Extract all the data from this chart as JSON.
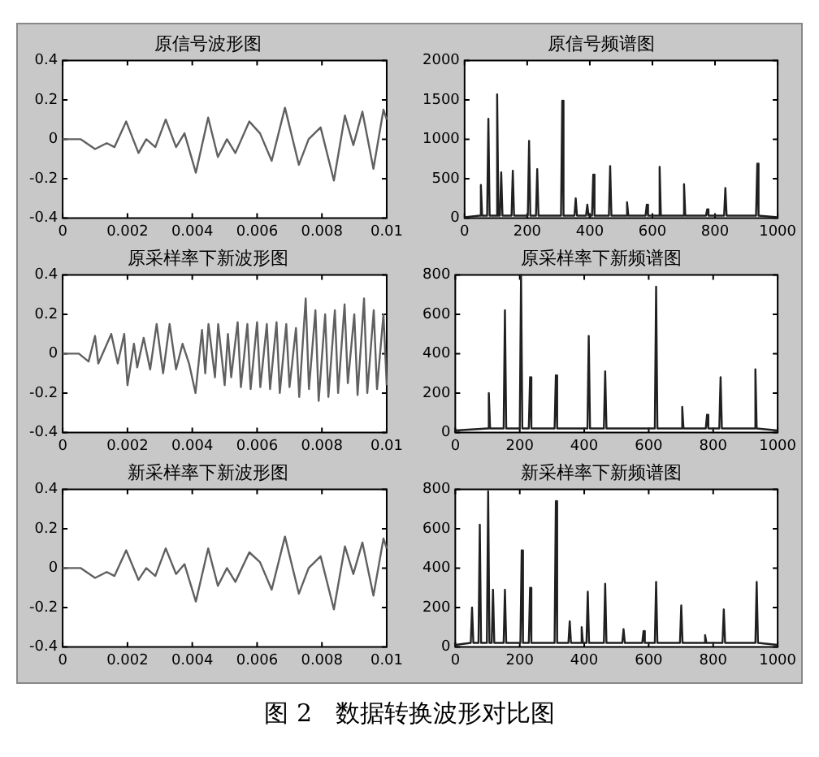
{
  "chart_data": [
    {
      "type": "line",
      "title": "原信号波形图",
      "xlim": [
        0,
        0.01
      ],
      "xticks": [
        0,
        0.002,
        0.004,
        0.006,
        0.008,
        0.01
      ],
      "ylim": [
        -0.4,
        0.4
      ],
      "yticks": [
        -0.4,
        -0.2,
        0,
        0.2,
        0.4
      ],
      "grid": false,
      "legend": false,
      "marker": "none",
      "line_style": "solid",
      "x": [
        0,
        0.00056,
        0.001,
        0.00136,
        0.0016,
        0.00196,
        0.00234,
        0.00258,
        0.00286,
        0.00318,
        0.0035,
        0.00376,
        0.00411,
        0.00449,
        0.00479,
        0.00507,
        0.00533,
        0.00576,
        0.00609,
        0.00645,
        0.00686,
        0.00729,
        0.00759,
        0.00796,
        0.00837,
        0.00871,
        0.00897,
        0.00925,
        0.00959,
        0.0099,
        0.01
      ],
      "series": [
        {
          "color": "#606060",
          "values": [
            0,
            0,
            -0.05,
            -0.02,
            -0.04,
            0.09,
            -0.07,
            0,
            -0.04,
            0.1,
            -0.04,
            0.03,
            -0.17,
            0.11,
            -0.09,
            0,
            -0.07,
            0.09,
            0.03,
            -0.11,
            0.16,
            -0.13,
            0,
            0.06,
            -0.21,
            0.12,
            -0.03,
            0.14,
            -0.15,
            0.15,
            0.1
          ]
        }
      ]
    },
    {
      "type": "line",
      "title": "原信号频谱图",
      "xlim": [
        0,
        1000
      ],
      "xticks": [
        0,
        200,
        400,
        600,
        800,
        1000
      ],
      "ylim": [
        0,
        2000
      ],
      "yticks": [
        0,
        500,
        1000,
        1500,
        2000
      ],
      "grid": false,
      "legend": false,
      "marker": "none",
      "line_style": "solid",
      "x": [
        0,
        48,
        52,
        56,
        72,
        76,
        80,
        100,
        104,
        108,
        113,
        117,
        121,
        150,
        154,
        158,
        202,
        206,
        210,
        228,
        232,
        236,
        308,
        312,
        316,
        351,
        355,
        359,
        388,
        392,
        396,
        407,
        411,
        415,
        461,
        465,
        469,
        515,
        519,
        523,
        578,
        582,
        586,
        619,
        623,
        627,
        697,
        701,
        705,
        771,
        775,
        779,
        829,
        833,
        837,
        931,
        935,
        939,
        1000
      ],
      "series": [
        {
          "color": "#202020",
          "values": [
            10,
            30,
            420,
            30,
            30,
            1260,
            30,
            30,
            1570,
            30,
            30,
            580,
            30,
            30,
            600,
            30,
            30,
            980,
            30,
            30,
            620,
            30,
            30,
            1490,
            30,
            30,
            250,
            30,
            30,
            170,
            30,
            30,
            550,
            30,
            30,
            660,
            30,
            30,
            200,
            30,
            30,
            170,
            30,
            30,
            650,
            30,
            30,
            430,
            30,
            30,
            110,
            30,
            30,
            380,
            30,
            30,
            690,
            30,
            10
          ]
        }
      ]
    },
    {
      "type": "line",
      "title": "原采样率下新波形图",
      "xlim": [
        0,
        0.01
      ],
      "xticks": [
        0,
        0.002,
        0.004,
        0.006,
        0.008,
        0.01
      ],
      "ylim": [
        -0.4,
        0.4
      ],
      "yticks": [
        -0.4,
        -0.2,
        0,
        0.2,
        0.4
      ],
      "grid": false,
      "legend": false,
      "marker": "none",
      "line_style": "solid",
      "x": [
        0,
        0.0005,
        0.0008,
        0.001,
        0.0011,
        0.0015,
        0.0017,
        0.0019,
        0.002,
        0.0022,
        0.0023,
        0.0025,
        0.0027,
        0.0029,
        0.0031,
        0.0033,
        0.0035,
        0.0037,
        0.0039,
        0.0041,
        0.0043,
        0.0044,
        0.0045,
        0.0047,
        0.0048,
        0.005,
        0.0051,
        0.0052,
        0.0054,
        0.0055,
        0.0057,
        0.0058,
        0.006,
        0.0061,
        0.0063,
        0.0064,
        0.0066,
        0.0067,
        0.0069,
        0.007,
        0.0072,
        0.0073,
        0.0075,
        0.0076,
        0.0078,
        0.0079,
        0.0081,
        0.0082,
        0.0084,
        0.0085,
        0.0087,
        0.0088,
        0.009,
        0.0091,
        0.0093,
        0.0094,
        0.0096,
        0.0097,
        0.0099,
        0.01
      ],
      "series": [
        {
          "color": "#606060",
          "values": [
            0,
            0,
            -0.04,
            0.09,
            -0.05,
            0.1,
            -0.05,
            0.1,
            -0.16,
            0.05,
            -0.07,
            0.08,
            -0.08,
            0.15,
            -0.1,
            0.15,
            -0.08,
            0.05,
            -0.05,
            -0.2,
            0.12,
            -0.1,
            0.15,
            -0.12,
            0.15,
            -0.16,
            0.1,
            -0.12,
            0.16,
            -0.17,
            0.15,
            -0.18,
            0.16,
            -0.17,
            0.15,
            -0.18,
            0.16,
            -0.2,
            0.15,
            -0.17,
            0.13,
            -0.22,
            0.28,
            -0.18,
            0.22,
            -0.24,
            0.2,
            -0.22,
            0.22,
            -0.2,
            0.25,
            -0.15,
            0.2,
            -0.21,
            0.28,
            -0.2,
            0.22,
            -0.18,
            0.2,
            -0.16
          ]
        }
      ]
    },
    {
      "type": "line",
      "title": "原采样率下新频谱图",
      "xlim": [
        0,
        1000
      ],
      "xticks": [
        0,
        200,
        400,
        600,
        800,
        1000
      ],
      "ylim": [
        0,
        800
      ],
      "yticks": [
        0,
        200,
        400,
        600,
        800
      ],
      "grid": false,
      "legend": false,
      "marker": "none",
      "line_style": "solid",
      "x": [
        0,
        100,
        104,
        108,
        150,
        154,
        158,
        200,
        204,
        208,
        228,
        232,
        236,
        308,
        312,
        316,
        410,
        414,
        418,
        461,
        465,
        469,
        619,
        623,
        627,
        700,
        704,
        708,
        777,
        781,
        785,
        819,
        823,
        827,
        927,
        931,
        935,
        1000
      ],
      "series": [
        {
          "color": "#202020",
          "values": [
            10,
            20,
            200,
            20,
            20,
            620,
            20,
            20,
            800,
            20,
            20,
            280,
            20,
            20,
            290,
            20,
            20,
            490,
            20,
            20,
            310,
            20,
            20,
            740,
            20,
            20,
            130,
            20,
            20,
            90,
            20,
            20,
            280,
            20,
            20,
            320,
            20,
            10
          ]
        }
      ]
    },
    {
      "type": "line",
      "title": "新采样率下新波形图",
      "xlim": [
        0,
        0.01
      ],
      "xticks": [
        0,
        0.002,
        0.004,
        0.006,
        0.008,
        0.01
      ],
      "ylim": [
        -0.4,
        0.4
      ],
      "yticks": [
        -0.4,
        -0.2,
        0,
        0.2,
        0.4
      ],
      "grid": false,
      "legend": false,
      "marker": "none",
      "line_style": "solid",
      "x": [
        0,
        0.00056,
        0.001,
        0.00136,
        0.0016,
        0.00196,
        0.00234,
        0.00258,
        0.00286,
        0.00318,
        0.0035,
        0.00376,
        0.00411,
        0.00449,
        0.00479,
        0.00507,
        0.00533,
        0.00576,
        0.00609,
        0.00645,
        0.00686,
        0.00729,
        0.00759,
        0.00796,
        0.00837,
        0.00871,
        0.00897,
        0.00925,
        0.00959,
        0.0099,
        0.01
      ],
      "series": [
        {
          "color": "#606060",
          "values": [
            0,
            0,
            -0.05,
            -0.02,
            -0.04,
            0.09,
            -0.06,
            0,
            -0.04,
            0.1,
            -0.03,
            0.02,
            -0.17,
            0.1,
            -0.09,
            0,
            -0.07,
            0.08,
            0.03,
            -0.11,
            0.16,
            -0.13,
            0,
            0.06,
            -0.21,
            0.11,
            -0.03,
            0.13,
            -0.14,
            0.15,
            0.1
          ]
        }
      ],
      "annotations": [
        "图 2   数据转换波形对比图"
      ]
    },
    {
      "type": "line",
      "title": "新采样率下新频谱图",
      "xlim": [
        0,
        1000
      ],
      "xticks": [
        0,
        200,
        400,
        600,
        800,
        1000
      ],
      "ylim": [
        0,
        800
      ],
      "yticks": [
        0,
        200,
        400,
        600,
        800
      ],
      "grid": false,
      "legend": false,
      "marker": "none",
      "line_style": "solid",
      "x": [
        0,
        48,
        52,
        56,
        72,
        76,
        80,
        98,
        102,
        106,
        113,
        117,
        121,
        150,
        154,
        158,
        202,
        206,
        210,
        228,
        232,
        236,
        308,
        312,
        316,
        351,
        355,
        359,
        388,
        392,
        396,
        407,
        411,
        415,
        461,
        465,
        469,
        518,
        522,
        526,
        580,
        584,
        588,
        619,
        623,
        627,
        697,
        701,
        705,
        771,
        775,
        779,
        829,
        833,
        837,
        931,
        935,
        939,
        1000
      ],
      "series": [
        {
          "color": "#202020",
          "values": [
            10,
            20,
            200,
            20,
            20,
            620,
            20,
            20,
            790,
            20,
            20,
            290,
            20,
            20,
            290,
            20,
            20,
            490,
            20,
            20,
            300,
            20,
            20,
            740,
            20,
            20,
            130,
            20,
            20,
            100,
            20,
            20,
            280,
            20,
            20,
            320,
            20,
            20,
            90,
            20,
            20,
            80,
            20,
            20,
            330,
            20,
            20,
            210,
            20,
            20,
            60,
            20,
            20,
            190,
            20,
            20,
            330,
            20,
            10
          ]
        }
      ]
    }
  ]
}
